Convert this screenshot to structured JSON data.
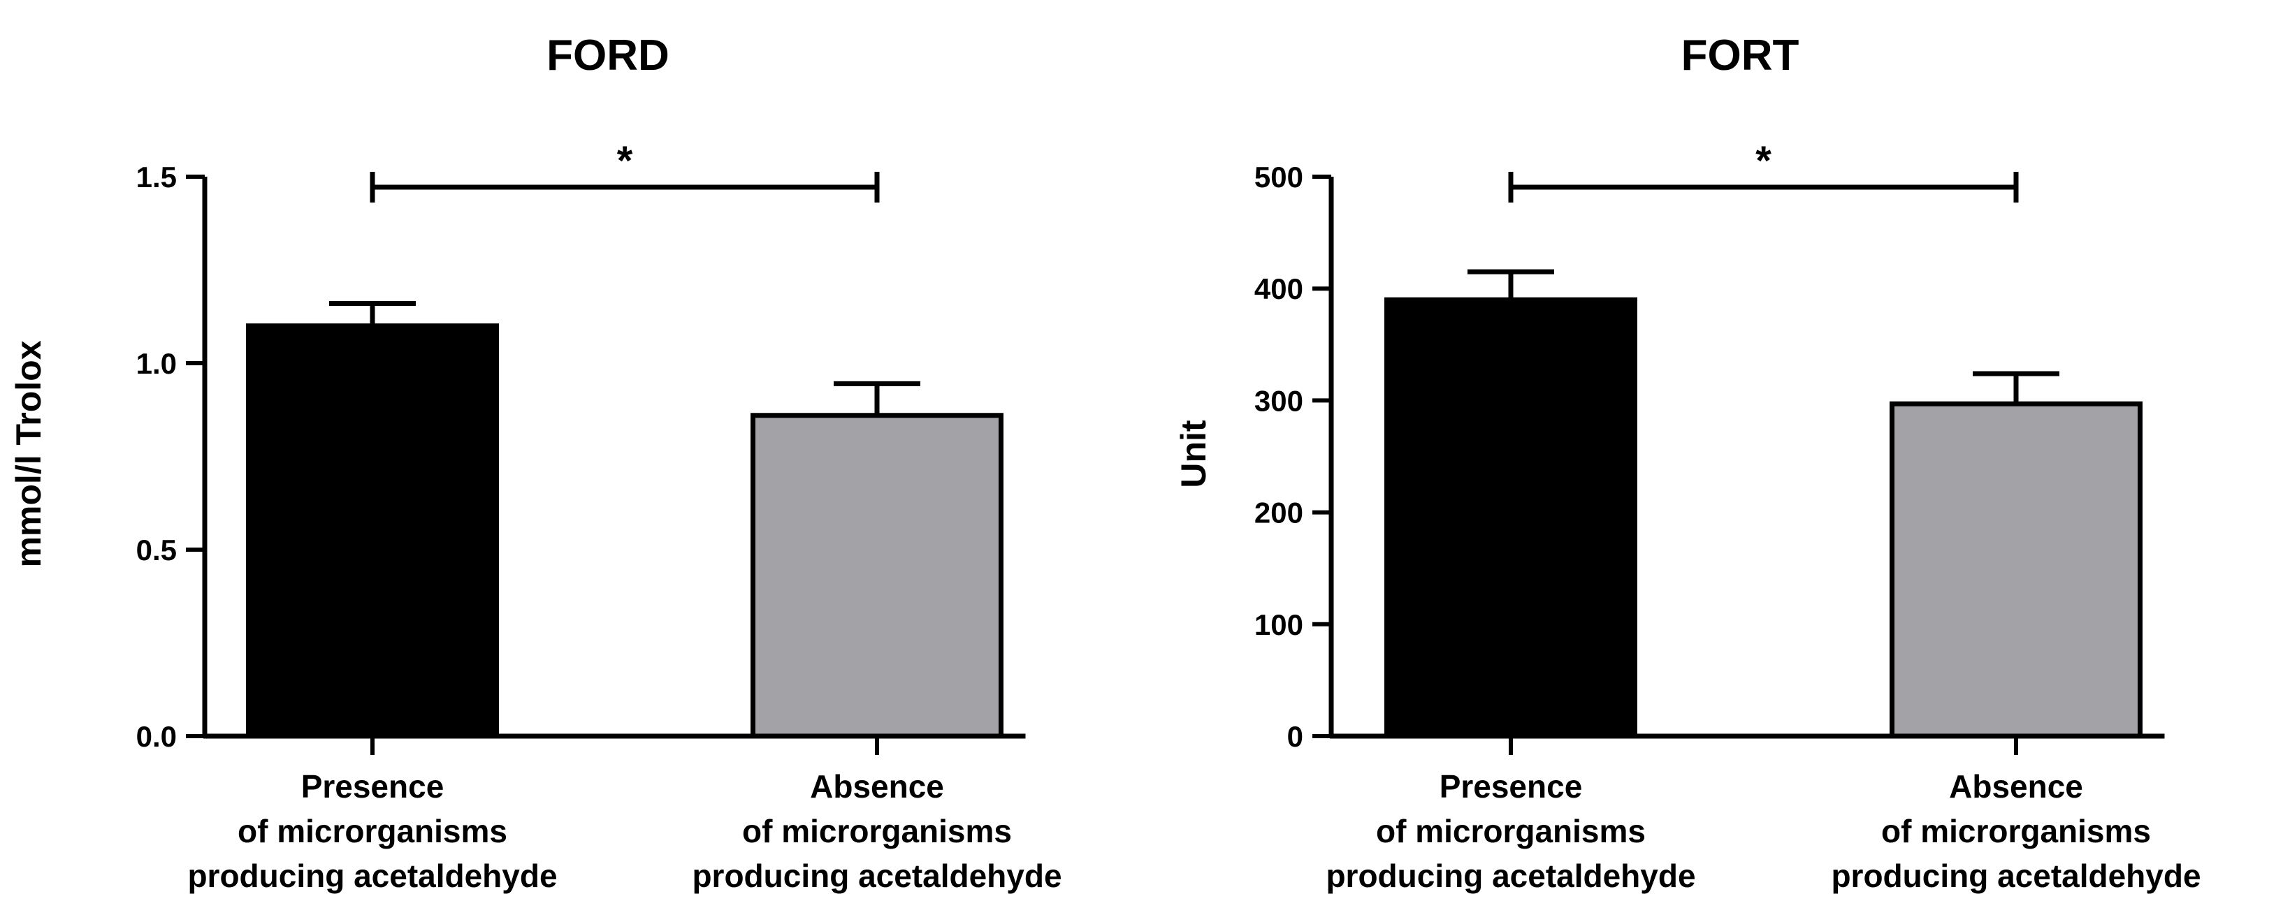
{
  "chart_data": [
    {
      "type": "bar",
      "title": "FORD",
      "ylabel": "mmol/l Trolox",
      "xlabel": "",
      "ylim": [
        0,
        1.5
      ],
      "yticks": [
        "0.0",
        "0.5",
        "1.0",
        "1.5"
      ],
      "categories": [
        [
          "Presence",
          "of microrganisms",
          "producing acetaldehyde"
        ],
        [
          "Absence",
          "of microrganisms",
          "producing acetaldehyde"
        ]
      ],
      "values": [
        1.1,
        0.86
      ],
      "errors": [
        0.06,
        0.085
      ],
      "colors": [
        "#000000",
        "#a3a2a7"
      ],
      "significance": "*"
    },
    {
      "type": "bar",
      "title": "FORT",
      "ylabel": "Unit",
      "xlabel": "",
      "ylim": [
        0,
        500
      ],
      "yticks": [
        "0",
        "100",
        "200",
        "300",
        "400",
        "500"
      ],
      "categories": [
        [
          "Presence",
          "of microrganisms",
          "producing acetaldehyde"
        ],
        [
          "Absence",
          "of microrganisms",
          "producing acetaldehyde"
        ]
      ],
      "values": [
        390,
        297
      ],
      "errors": [
        25,
        27
      ],
      "colors": [
        "#000000",
        "#a3a2a7"
      ],
      "significance": "*"
    }
  ]
}
